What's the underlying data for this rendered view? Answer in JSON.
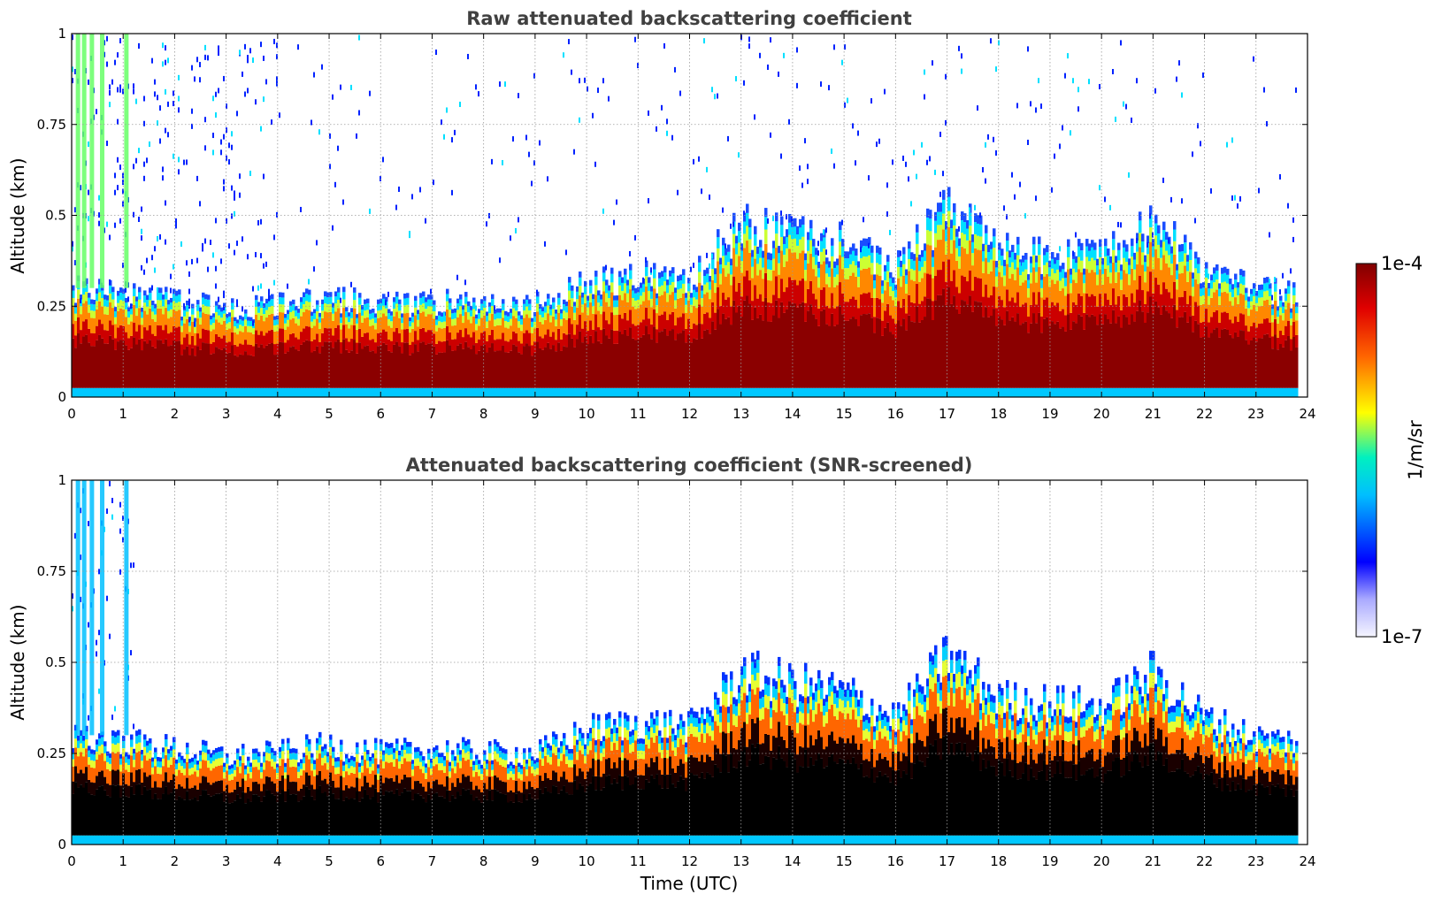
{
  "chart_data": [
    {
      "type": "heatmap",
      "title": "Raw attenuated backscattering coefficient",
      "xlabel": "",
      "ylabel": "Altitude (km)",
      "xlim": [
        0,
        24
      ],
      "ylim": [
        0,
        1
      ],
      "x_ticks": [
        "0",
        "1",
        "2",
        "3",
        "4",
        "5",
        "6",
        "7",
        "8",
        "9",
        "10",
        "11",
        "12",
        "13",
        "14",
        "15",
        "16",
        "17",
        "18",
        "19",
        "20",
        "21",
        "22",
        "23",
        "24"
      ],
      "y_ticks": [
        "0",
        "0.25",
        "0.5",
        "0.75",
        "1"
      ],
      "y_tick_values": [
        0,
        0.25,
        0.5,
        0.75,
        1
      ],
      "grid": true,
      "data_end_hour": 23.8,
      "boundary_layer_top_km": {
        "hours": [
          0,
          1,
          2,
          3,
          4,
          5,
          6,
          7,
          8,
          9,
          10,
          11,
          12,
          13,
          14,
          15,
          16,
          17,
          18,
          19,
          20,
          21,
          22,
          23,
          23.8
        ],
        "values": [
          0.28,
          0.27,
          0.25,
          0.23,
          0.24,
          0.26,
          0.24,
          0.25,
          0.24,
          0.24,
          0.3,
          0.32,
          0.31,
          0.45,
          0.42,
          0.4,
          0.33,
          0.5,
          0.38,
          0.37,
          0.36,
          0.45,
          0.33,
          0.28,
          0.27
        ]
      },
      "noise": "raw"
    },
    {
      "type": "heatmap",
      "title": "Attenuated backscattering coefficient (SNR-screened)",
      "xlabel": "Time (UTC)",
      "ylabel": "Altitude (km)",
      "xlim": [
        0,
        24
      ],
      "ylim": [
        0,
        1
      ],
      "x_ticks": [
        "0",
        "1",
        "2",
        "3",
        "4",
        "5",
        "6",
        "7",
        "8",
        "9",
        "10",
        "11",
        "12",
        "13",
        "14",
        "15",
        "16",
        "17",
        "18",
        "19",
        "20",
        "21",
        "22",
        "23",
        "24"
      ],
      "y_ticks": [
        "0",
        "0.25",
        "0.5",
        "0.75",
        "1"
      ],
      "y_tick_values": [
        0,
        0.25,
        0.5,
        0.75,
        1
      ],
      "grid": true,
      "data_end_hour": 23.8,
      "boundary_layer_top_km": {
        "hours": [
          0,
          1,
          2,
          3,
          4,
          5,
          6,
          7,
          8,
          9,
          10,
          11,
          12,
          13,
          14,
          15,
          16,
          17,
          18,
          19,
          20,
          21,
          22,
          23,
          23.8
        ],
        "values": [
          0.28,
          0.27,
          0.25,
          0.23,
          0.24,
          0.26,
          0.24,
          0.25,
          0.24,
          0.24,
          0.3,
          0.32,
          0.31,
          0.45,
          0.42,
          0.4,
          0.33,
          0.5,
          0.38,
          0.37,
          0.36,
          0.45,
          0.33,
          0.28,
          0.27
        ]
      },
      "noise": "screened"
    }
  ],
  "colorbar": {
    "label": "1/m/sr",
    "min_label": "1e-7",
    "max_label": "1e-4",
    "scale": "log",
    "range": [
      1e-07,
      0.0001
    ],
    "colormap": "jet-like",
    "stops": [
      "#f5f5ff",
      "#0000ff",
      "#00e5ff",
      "#ffff00",
      "#ff3300",
      "#800000"
    ]
  }
}
